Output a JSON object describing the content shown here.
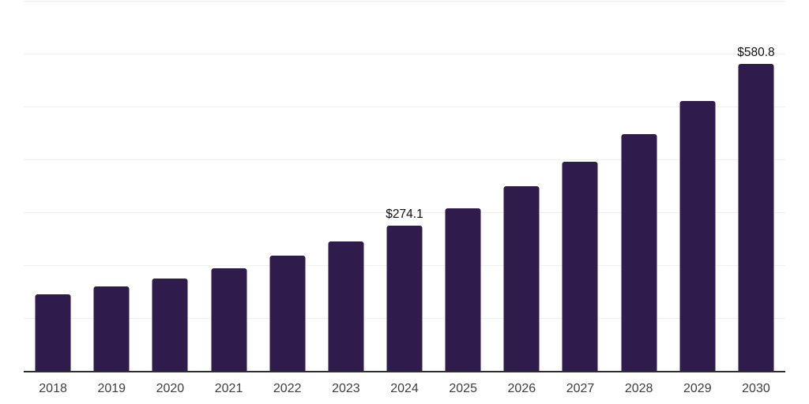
{
  "chart_data": {
    "type": "bar",
    "title": "",
    "xlabel": "",
    "ylabel": "",
    "categories": [
      "2018",
      "2019",
      "2020",
      "2021",
      "2022",
      "2023",
      "2024",
      "2025",
      "2026",
      "2027",
      "2028",
      "2029",
      "2030"
    ],
    "values": [
      145.0,
      159.4,
      175.2,
      194.7,
      217.7,
      245.1,
      274.1,
      307.5,
      348.8,
      395.1,
      447.2,
      510.9,
      580.8
    ],
    "bar_labels": {
      "2024": "$274.1",
      "2030": "$580.8"
    },
    "currency_prefix": "$",
    "ylim": [
      0,
      701.5
    ],
    "gridline_values": [
      100,
      200,
      300,
      400,
      500,
      600,
      700
    ],
    "grid": "horizontal-only",
    "y_axis_labels_visible": false,
    "legend": "none",
    "colors": {
      "bar": "#2f1b4c",
      "axis_line": "#2e2d33",
      "gridline": "#f0f0f0",
      "data_label_text": "#0f0f0f",
      "tick_label_text": "#3d3d3d",
      "background": "#ffffff"
    }
  }
}
